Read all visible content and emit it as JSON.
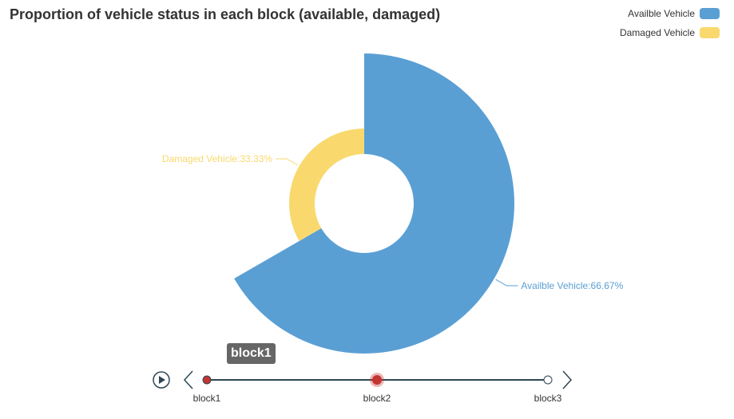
{
  "chart_data": {
    "type": "pie",
    "variant": "rose-donut",
    "title": "Proportion of vehicle status in each block (available, damaged)",
    "series": [
      {
        "name": "Availble Vehicle",
        "value": 66.67,
        "color": "#5a9fd4",
        "label": "Availble Vehicle:66.67%"
      },
      {
        "name": "Damaged Vehicle",
        "value": 33.33,
        "color": "#f9d96e",
        "label": "Damaged Vehicle:33.33%"
      }
    ],
    "legend_position": "top-right",
    "timeline": {
      "items": [
        "block1",
        "block2",
        "block3"
      ],
      "current": "block2",
      "tooltip": "block1"
    }
  }
}
